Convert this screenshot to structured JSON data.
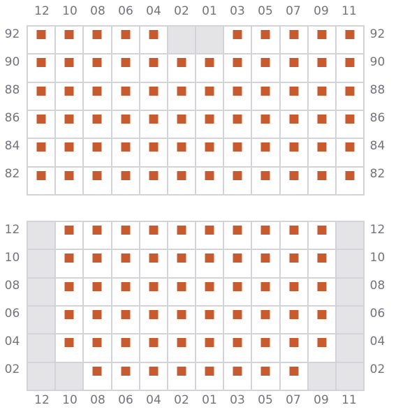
{
  "colors": {
    "seat": "#c75b2f",
    "cell": "#ffffff",
    "blocked": "#e4e4e7",
    "grid_line": "#d4d4d8",
    "label": "#73737c",
    "background": "#ffffff"
  },
  "columns": [
    "12",
    "10",
    "08",
    "06",
    "04",
    "02",
    "01",
    "03",
    "05",
    "07",
    "09",
    "11"
  ],
  "sections": [
    {
      "id": "upper",
      "row_labels": [
        "92",
        "90",
        "88",
        "86",
        "84",
        "82"
      ],
      "rows": [
        [
          1,
          1,
          1,
          1,
          1,
          0,
          0,
          1,
          1,
          1,
          1,
          1
        ],
        [
          1,
          1,
          1,
          1,
          1,
          1,
          1,
          1,
          1,
          1,
          1,
          1
        ],
        [
          1,
          1,
          1,
          1,
          1,
          1,
          1,
          1,
          1,
          1,
          1,
          1
        ],
        [
          1,
          1,
          1,
          1,
          1,
          1,
          1,
          1,
          1,
          1,
          1,
          1
        ],
        [
          1,
          1,
          1,
          1,
          1,
          1,
          1,
          1,
          1,
          1,
          1,
          1
        ],
        [
          1,
          1,
          1,
          1,
          1,
          1,
          1,
          1,
          1,
          1,
          1,
          1
        ]
      ]
    },
    {
      "id": "lower",
      "row_labels": [
        "12",
        "10",
        "08",
        "06",
        "04",
        "02"
      ],
      "rows": [
        [
          0,
          1,
          1,
          1,
          1,
          1,
          1,
          1,
          1,
          1,
          1,
          0
        ],
        [
          0,
          1,
          1,
          1,
          1,
          1,
          1,
          1,
          1,
          1,
          1,
          0
        ],
        [
          0,
          1,
          1,
          1,
          1,
          1,
          1,
          1,
          1,
          1,
          1,
          0
        ],
        [
          0,
          1,
          1,
          1,
          1,
          1,
          1,
          1,
          1,
          1,
          1,
          0
        ],
        [
          0,
          1,
          1,
          1,
          1,
          1,
          1,
          1,
          1,
          1,
          1,
          0
        ],
        [
          0,
          0,
          1,
          1,
          1,
          1,
          1,
          1,
          1,
          1,
          0,
          0
        ]
      ]
    }
  ]
}
